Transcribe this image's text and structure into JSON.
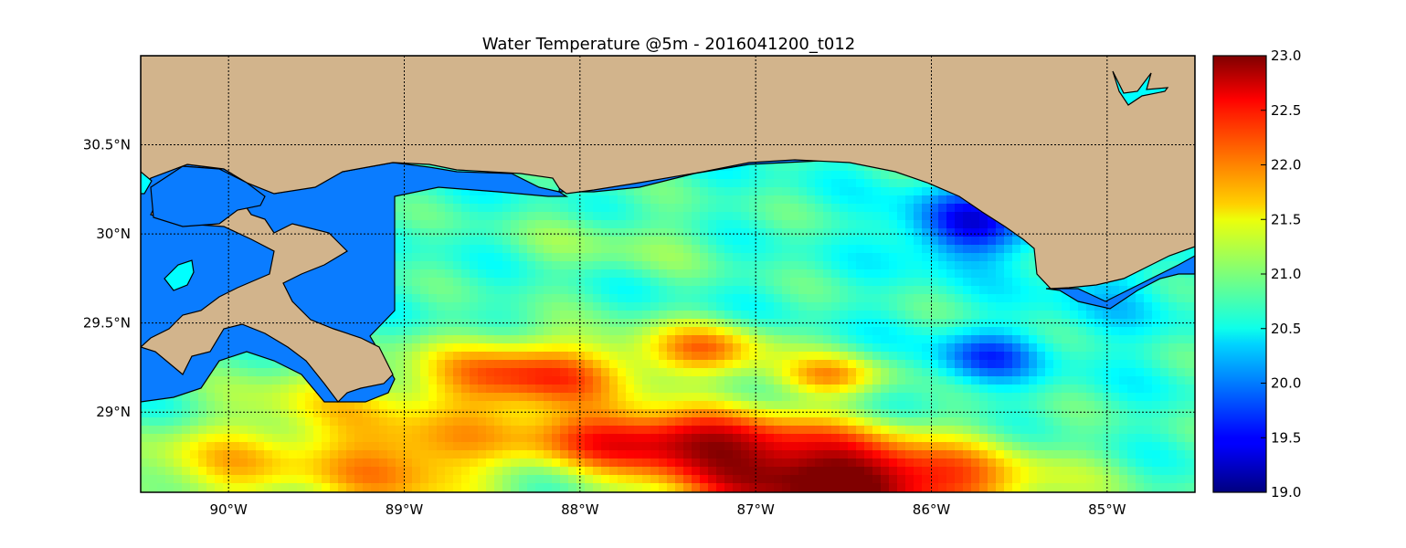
{
  "title": "Water Temperature @5m - 2016041200_t012",
  "colors": {
    "land": "#d2b48c",
    "water_no_data": "#0a7cff",
    "inland_lake": "#00ffff",
    "coastline": "#000000",
    "grid": "#000000"
  },
  "map": {
    "lon_range": [
      -90.5,
      -84.5
    ],
    "lat_range": [
      28.55,
      31.0
    ],
    "lon_ticks": [
      {
        "value": -90,
        "label": "90°W"
      },
      {
        "value": -89,
        "label": "89°W"
      },
      {
        "value": -88,
        "label": "88°W"
      },
      {
        "value": -87,
        "label": "87°W"
      },
      {
        "value": -86,
        "label": "86°W"
      },
      {
        "value": -85,
        "label": "85°W"
      }
    ],
    "lat_ticks": [
      {
        "value": 30.5,
        "label": "30.5°N"
      },
      {
        "value": 30.0,
        "label": "30°N"
      },
      {
        "value": 29.5,
        "label": "29.5°N"
      },
      {
        "value": 29.0,
        "label": "29°N"
      }
    ],
    "gridlines": "dotted"
  },
  "colorbar": {
    "colormap": "jet",
    "range": [
      19.0,
      23.0
    ],
    "ticks": [
      "23.0",
      "22.5",
      "22.0",
      "21.5",
      "21.0",
      "20.5",
      "20.0",
      "19.5",
      "19.0"
    ]
  },
  "chart_data": {
    "type": "heatmap",
    "variable": "water temperature at 5 m",
    "title": "Water Temperature @5m - 2016041200_t012",
    "value_range": [
      19.0,
      23.0
    ],
    "x_range": [
      -90.5,
      -84.5
    ],
    "y_range": [
      28.55,
      31.0
    ],
    "features": [
      {
        "region": "south-central warm core (~87.5°W–85.6°W, south of 28.9°N)",
        "value": 23.0
      },
      {
        "region": "warm tongue along 29.0–29.3°N from 89°W to 86.5°W",
        "value": 22.7
      },
      {
        "region": "warm belt 29.3–29.5°N near 88.5°W–87.5°W",
        "value": 22.2
      },
      {
        "region": "nearshore shelf off Mobile / Pensacola",
        "value": 21.0
      },
      {
        "region": "mid shelf near 87°W, 30°N",
        "value": 20.6
      },
      {
        "region": "cold pocket off Florida panhandle (~85.8°W, 30.1°N)",
        "value": 19.7
      },
      {
        "region": "cold pocket near 85.7°W, 29.3°N",
        "value": 19.9
      },
      {
        "region": "eastern shelf near 84.8°W, 29.6°N",
        "value": 20.5
      },
      {
        "region": "Louisiana shelf south of delta (~90°W, 28.8°N)",
        "value": 21.6
      }
    ]
  }
}
